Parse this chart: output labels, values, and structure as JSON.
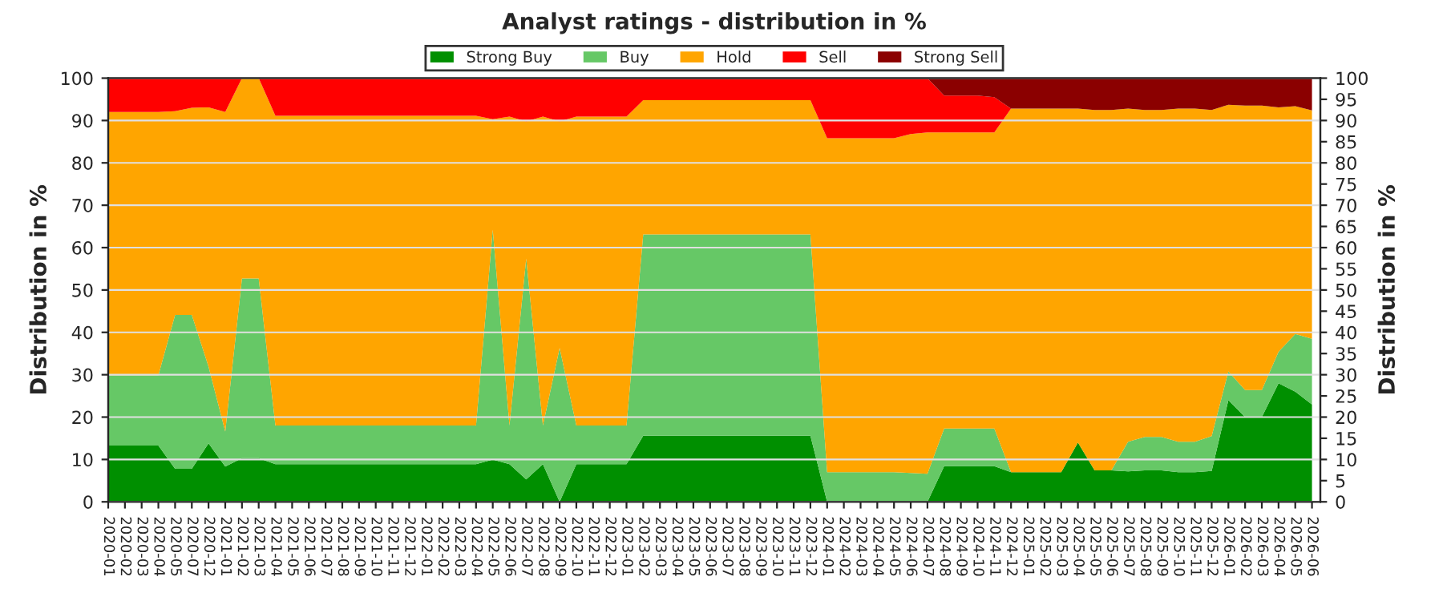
{
  "chart_data": {
    "type": "area",
    "stacked": true,
    "title": "Analyst ratings - distribution in %",
    "ylabel": "Distribution in %",
    "y2label": "Distribution in %",
    "categories": [
      "2020-01",
      "2020-02",
      "2020-03",
      "2020-04",
      "2020-05",
      "2020-07",
      "2020-12",
      "2021-01",
      "2021-02",
      "2021-03",
      "2021-04",
      "2021-05",
      "2021-06",
      "2021-07",
      "2021-08",
      "2021-09",
      "2021-10",
      "2021-11",
      "2021-12",
      "2022-01",
      "2022-02",
      "2022-03",
      "2022-04",
      "2022-05",
      "2022-06",
      "2022-07",
      "2022-08",
      "2022-09",
      "2022-10",
      "2022-11",
      "2022-12",
      "2023-01",
      "2023-02",
      "2023-03",
      "2023-04",
      "2023-05",
      "2023-06",
      "2023-07",
      "2023-08",
      "2023-09",
      "2023-10",
      "2023-11",
      "2023-12",
      "2024-01",
      "2024-02",
      "2024-03",
      "2024-04",
      "2024-05",
      "2024-06",
      "2024-07",
      "2024-08",
      "2024-09",
      "2024-10",
      "2024-11",
      "2024-12",
      "2025-01",
      "2025-02",
      "2025-03",
      "2025-04",
      "2025-05",
      "2025-06",
      "2025-07",
      "2025-08",
      "2025-09",
      "2025-10",
      "2025-11",
      "2025-12",
      "2026-01",
      "2026-02",
      "2026-03",
      "2026-04",
      "2026-05",
      "2026-06"
    ],
    "series": [
      {
        "name": "Strong Buy",
        "color": "#008f00",
        "values": [
          13.3,
          13.3,
          13.3,
          13.3,
          7.8,
          7.8,
          13.8,
          8.3,
          10.3,
          10.3,
          8.9,
          8.9,
          8.9,
          8.9,
          8.9,
          8.9,
          8.9,
          8.9,
          8.9,
          8.9,
          8.9,
          8.9,
          8.9,
          10,
          8.9,
          5.3,
          8.9,
          0,
          8.9,
          8.9,
          8.9,
          8.9,
          15.6,
          15.6,
          15.6,
          15.6,
          15.6,
          15.6,
          15.6,
          15.6,
          15.6,
          15.6,
          15.6,
          0,
          0,
          0,
          0,
          0,
          0,
          0,
          8.4,
          8.4,
          8.4,
          8.4,
          7,
          7,
          7,
          7,
          14,
          7.4,
          7.4,
          7.2,
          7.4,
          7.4,
          7,
          7,
          7.3,
          24,
          20,
          20,
          28,
          26,
          23
        ]
      },
      {
        "name": "Buy",
        "color": "#66c866",
        "values": [
          16.6,
          16.6,
          16.6,
          16.6,
          36.3,
          36.3,
          18.1,
          8.3,
          42.4,
          42.4,
          9.1,
          9.1,
          9.1,
          9.1,
          9.1,
          9.1,
          9.1,
          9.1,
          9.1,
          9.1,
          9.1,
          9.1,
          9.1,
          54.2,
          9.1,
          52.1,
          9.1,
          36.3,
          9.1,
          9.1,
          9.1,
          9.1,
          47.5,
          47.5,
          47.5,
          47.5,
          47.5,
          47.5,
          47.5,
          47.5,
          47.5,
          47.5,
          47.5,
          7,
          7,
          7,
          7,
          7,
          6.8,
          6.6,
          8.9,
          8.9,
          8.9,
          8.9,
          0,
          0,
          0,
          0,
          0,
          0,
          0,
          7,
          7.9,
          7.9,
          7.2,
          7.2,
          8.2,
          6.8,
          6.4,
          6.4,
          7.4,
          13.6,
          15.5
        ]
      },
      {
        "name": "Hold",
        "color": "#ffa500",
        "values": [
          62.1,
          62.1,
          62.1,
          62.1,
          48.1,
          48.9,
          61.2,
          75.4,
          47.3,
          47.3,
          73.1,
          73.1,
          73.1,
          73.1,
          73.1,
          73.1,
          73.1,
          73.1,
          73.1,
          73.1,
          73.1,
          73.1,
          73.1,
          26.1,
          72.9,
          32.4,
          72.9,
          53.5,
          72.9,
          72.9,
          72.9,
          72.9,
          31.7,
          31.7,
          31.7,
          31.7,
          31.7,
          31.7,
          31.7,
          31.7,
          31.7,
          31.7,
          31.7,
          78.8,
          78.8,
          78.8,
          78.8,
          78.8,
          80,
          80.6,
          69.9,
          69.9,
          69.9,
          69.9,
          85.8,
          85.8,
          85.8,
          85.8,
          78.8,
          85.1,
          85.1,
          78.6,
          77.2,
          77.2,
          78.6,
          78.6,
          77,
          62.9,
          67.1,
          67.1,
          57.7,
          53.8,
          53.9
        ]
      },
      {
        "name": "Sell",
        "color": "#ff0000",
        "values": [
          8,
          8,
          8,
          8,
          7.8,
          7,
          6.9,
          8,
          0,
          0,
          8.9,
          8.9,
          8.9,
          8.9,
          8.9,
          8.9,
          8.9,
          8.9,
          8.9,
          8.9,
          8.9,
          8.9,
          8.9,
          9.7,
          9.1,
          10.2,
          9.1,
          10.2,
          9.1,
          9.1,
          9.1,
          9.1,
          5.2,
          5.2,
          5.2,
          5.2,
          5.2,
          5.2,
          5.2,
          5.2,
          5.2,
          5.2,
          5.2,
          14.2,
          14.2,
          14.2,
          14.2,
          14.2,
          13.2,
          12.8,
          8.7,
          8.7,
          8.7,
          8.3,
          0,
          0,
          0,
          0,
          0,
          0,
          0,
          0,
          0,
          0,
          0,
          0,
          0,
          0,
          0,
          0,
          0,
          0,
          0
        ]
      },
      {
        "name": "Strong Sell",
        "color": "#8b0000",
        "values": [
          0,
          0,
          0,
          0,
          0,
          0,
          0,
          0,
          0,
          0,
          0,
          0,
          0,
          0,
          0,
          0,
          0,
          0,
          0,
          0,
          0,
          0,
          0,
          0,
          0,
          0,
          0,
          0,
          0,
          0,
          0,
          0,
          0,
          0,
          0,
          0,
          0,
          0,
          0,
          0,
          0,
          0,
          0,
          0,
          0,
          0,
          0,
          0,
          0,
          0,
          4.1,
          4.1,
          4.1,
          4.5,
          7.2,
          7.2,
          7.2,
          7.2,
          7.2,
          7.5,
          7.5,
          7.2,
          7.5,
          7.5,
          7.2,
          7.2,
          7.5,
          6.3,
          6.5,
          6.5,
          6.9,
          6.6,
          7.6
        ]
      }
    ],
    "ylim": [
      0,
      100
    ],
    "yticks": [
      0,
      10,
      20,
      30,
      40,
      50,
      60,
      70,
      80,
      90,
      100
    ],
    "y2lim": [
      0,
      100
    ],
    "y2ticks": [
      0,
      5,
      10,
      15,
      20,
      25,
      30,
      35,
      40,
      45,
      50,
      55,
      60,
      65,
      70,
      75,
      80,
      85,
      90,
      95,
      100
    ],
    "grid": "y",
    "legend": "top"
  }
}
